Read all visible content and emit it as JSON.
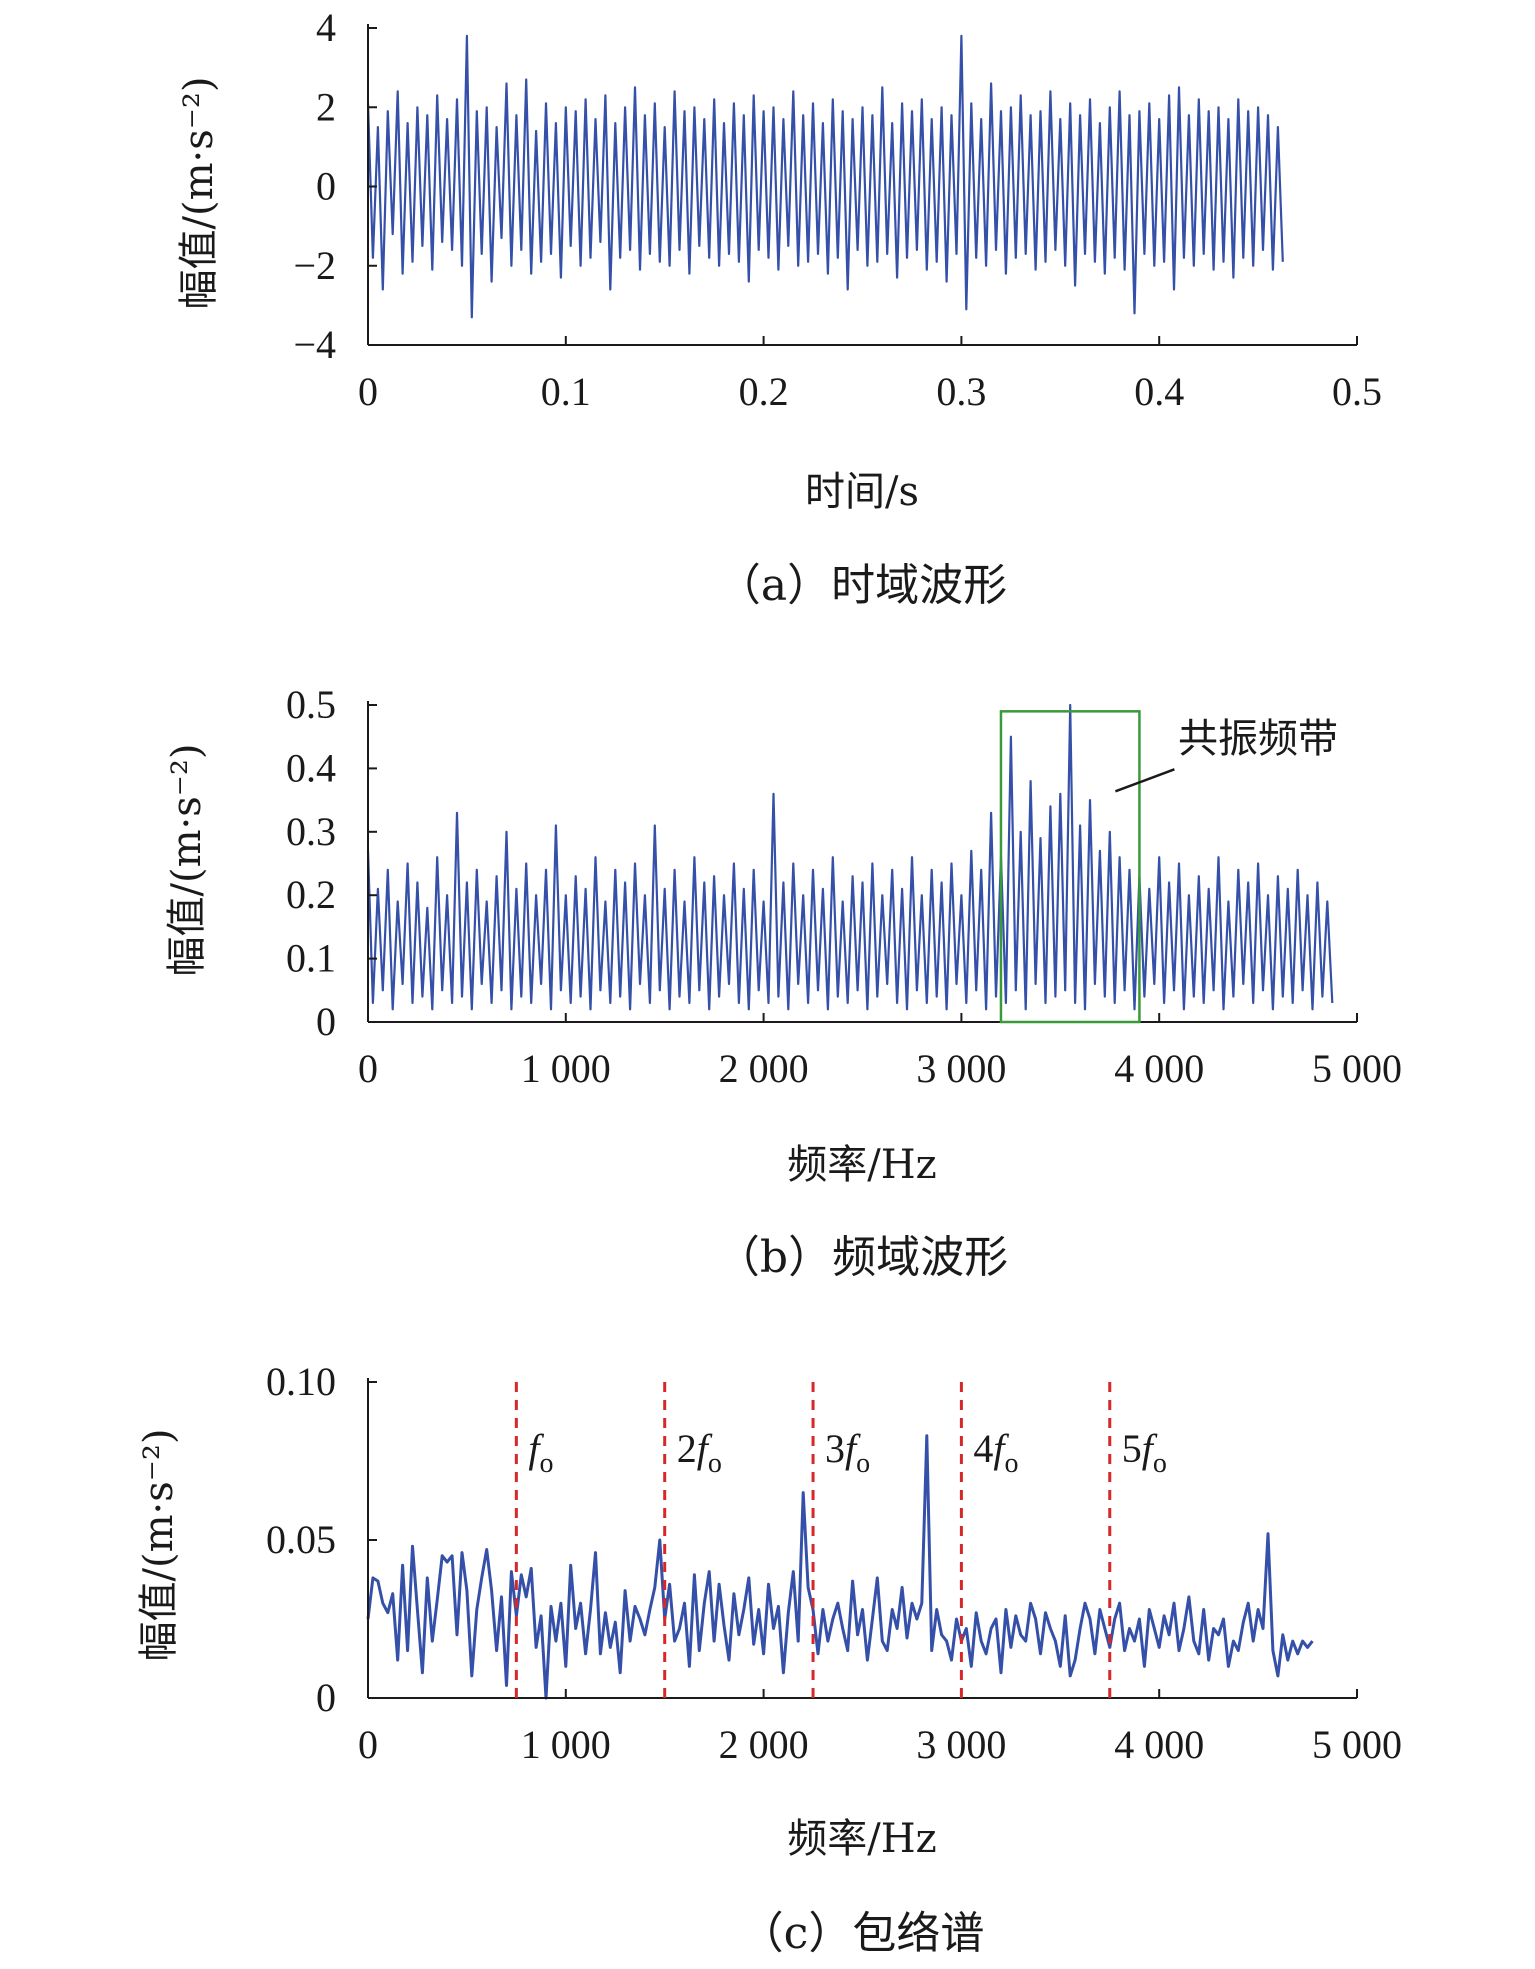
{
  "colors": {
    "series": "#3550a8",
    "axis": "#1a1a1a",
    "band_box": "#3a9a3a",
    "harmonic_line": "#d62828"
  },
  "chart_data": [
    {
      "type": "line",
      "title": "（a）时域波形",
      "xlabel": "时间/s",
      "ylabel": "幅值/(m·s⁻²)",
      "xlim": [
        0,
        0.5
      ],
      "ylim": [
        -4,
        4
      ],
      "x_ticks": [
        0,
        0.1,
        0.2,
        0.3,
        0.4,
        0.5
      ],
      "x_tick_labels": [
        "0",
        "0.1",
        "0.2",
        "0.3",
        "0.4",
        "0.5"
      ],
      "y_ticks": [
        -4,
        -2,
        0,
        2,
        4
      ],
      "y_tick_labels": [
        "−4",
        "−2",
        "0",
        "2",
        "4"
      ],
      "grid": false,
      "series": [
        {
          "x_start": 0,
          "x_step": 0.0025,
          "values": [
            2.1,
            -1.8,
            1.5,
            -2.6,
            1.9,
            -1.2,
            2.4,
            -2.2,
            1.6,
            -1.9,
            2.0,
            -1.5,
            1.8,
            -2.1,
            2.3,
            -1.4,
            1.7,
            -1.6,
            2.2,
            -2.0,
            3.8,
            -3.3,
            1.9,
            -1.7,
            2.0,
            -2.4,
            1.5,
            -1.3,
            2.6,
            -2.0,
            1.8,
            -1.6,
            2.7,
            -2.2,
            1.4,
            -1.9,
            2.1,
            -1.7,
            1.6,
            -2.3,
            2.0,
            -1.5,
            1.9,
            -2.0,
            2.2,
            -1.8,
            1.7,
            -1.4,
            2.3,
            -2.6,
            1.6,
            -1.8,
            2.0,
            -1.6,
            2.5,
            -2.1,
            1.8,
            -1.7,
            2.1,
            -1.9,
            1.5,
            -2.0,
            2.4,
            -1.6,
            1.9,
            -2.2,
            2.0,
            -1.5,
            1.7,
            -1.8,
            2.2,
            -2.0,
            1.6,
            -1.7,
            2.1,
            -1.9,
            1.8,
            -2.4,
            2.3,
            -1.6,
            1.9,
            -1.8,
            2.0,
            -2.1,
            1.7,
            -1.5,
            2.4,
            -2.0,
            1.8,
            -1.9,
            2.1,
            -1.7,
            1.6,
            -2.2,
            2.2,
            -1.8,
            1.9,
            -2.6,
            1.7,
            -1.6,
            2.0,
            -2.0,
            1.8,
            -1.9,
            2.5,
            -1.7,
            1.6,
            -2.3,
            2.1,
            -1.8,
            1.9,
            -1.6,
            2.2,
            -2.1,
            1.7,
            -1.9,
            2.0,
            -2.4,
            1.8,
            -1.7,
            3.8,
            -3.1,
            2.1,
            -1.8,
            1.7,
            -2.0,
            2.6,
            -1.6,
            1.9,
            -2.2,
            2.0,
            -1.8,
            2.3,
            -1.7,
            1.8,
            -2.1,
            1.9,
            -1.9,
            2.4,
            -1.6,
            1.7,
            -2.0,
            2.1,
            -2.5,
            1.8,
            -1.7,
            2.2,
            -1.9,
            1.6,
            -2.2,
            2.0,
            -1.8,
            2.4,
            -2.1,
            1.8,
            -3.2,
            1.9,
            -1.7,
            2.1,
            -2.0,
            1.7,
            -1.9,
            2.3,
            -2.6,
            2.5,
            -1.8,
            1.8,
            -2.0,
            2.2,
            -1.7,
            1.9,
            -2.1,
            2.0,
            -1.9,
            1.7,
            -2.3,
            2.2,
            -1.8,
            1.9,
            -2.0,
            2.0,
            -1.6,
            1.8,
            -2.1,
            1.5,
            -1.9
          ]
        }
      ],
      "caption": "（a）时域波形"
    },
    {
      "type": "line",
      "title": "（b）频域波形",
      "xlabel": "频率/Hz",
      "ylabel": "幅值/(m·s⁻²)",
      "xlim": [
        0,
        5000
      ],
      "ylim": [
        0,
        0.5
      ],
      "x_ticks": [
        0,
        1000,
        2000,
        3000,
        4000,
        5000
      ],
      "x_tick_labels": [
        "0",
        "1 000",
        "2 000",
        "3 000",
        "4 000",
        "5 000"
      ],
      "y_ticks": [
        0,
        0.1,
        0.2,
        0.3,
        0.4,
        0.5
      ],
      "y_tick_labels": [
        "0",
        "0.1",
        "0.2",
        "0.3",
        "0.4",
        "0.5"
      ],
      "grid": false,
      "band": {
        "x": [
          3200,
          3900
        ],
        "y": [
          0,
          0.49
        ],
        "label": "共振频带"
      },
      "series": [
        {
          "x_start": 0,
          "x_step": 25,
          "values": [
            0.27,
            0.03,
            0.21,
            0.05,
            0.24,
            0.02,
            0.19,
            0.06,
            0.25,
            0.03,
            0.22,
            0.04,
            0.18,
            0.02,
            0.26,
            0.05,
            0.2,
            0.03,
            0.33,
            0.04,
            0.22,
            0.02,
            0.24,
            0.06,
            0.19,
            0.03,
            0.23,
            0.05,
            0.3,
            0.02,
            0.21,
            0.04,
            0.25,
            0.03,
            0.2,
            0.06,
            0.24,
            0.02,
            0.31,
            0.05,
            0.2,
            0.03,
            0.23,
            0.04,
            0.21,
            0.02,
            0.26,
            0.05,
            0.19,
            0.03,
            0.24,
            0.04,
            0.22,
            0.02,
            0.25,
            0.06,
            0.2,
            0.03,
            0.31,
            0.05,
            0.21,
            0.02,
            0.24,
            0.04,
            0.19,
            0.03,
            0.26,
            0.05,
            0.22,
            0.02,
            0.23,
            0.04,
            0.2,
            0.06,
            0.25,
            0.03,
            0.21,
            0.02,
            0.24,
            0.05,
            0.19,
            0.03,
            0.36,
            0.04,
            0.22,
            0.02,
            0.25,
            0.06,
            0.2,
            0.03,
            0.24,
            0.05,
            0.21,
            0.02,
            0.26,
            0.04,
            0.19,
            0.03,
            0.23,
            0.05,
            0.22,
            0.02,
            0.25,
            0.04,
            0.2,
            0.06,
            0.24,
            0.03,
            0.21,
            0.02,
            0.26,
            0.05,
            0.2,
            0.03,
            0.24,
            0.04,
            0.22,
            0.02,
            0.25,
            0.06,
            0.2,
            0.03,
            0.27,
            0.05,
            0.24,
            0.02,
            0.33,
            0.04,
            0.26,
            0.03,
            0.45,
            0.05,
            0.3,
            0.02,
            0.38,
            0.06,
            0.29,
            0.03,
            0.34,
            0.04,
            0.36,
            0.05,
            0.5,
            0.03,
            0.31,
            0.02,
            0.35,
            0.06,
            0.27,
            0.04,
            0.3,
            0.03,
            0.26,
            0.05,
            0.24,
            0.02,
            0.23,
            0.04,
            0.21,
            0.06,
            0.26,
            0.03,
            0.22,
            0.05,
            0.25,
            0.02,
            0.2,
            0.04,
            0.23,
            0.03,
            0.21,
            0.05,
            0.26,
            0.02,
            0.19,
            0.04,
            0.24,
            0.06,
            0.22,
            0.03,
            0.25,
            0.05,
            0.2,
            0.02,
            0.23,
            0.04,
            0.21,
            0.03,
            0.24,
            0.05,
            0.2,
            0.02,
            0.22,
            0.04,
            0.19,
            0.03
          ]
        }
      ],
      "caption": "（b）频域波形"
    },
    {
      "type": "line",
      "title": "（c）包络谱",
      "xlabel": "频率/Hz",
      "ylabel": "幅值/(m·s⁻²)",
      "xlim": [
        0,
        5000
      ],
      "ylim": [
        0,
        0.1
      ],
      "x_ticks": [
        0,
        1000,
        2000,
        3000,
        4000,
        5000
      ],
      "x_tick_labels": [
        "0",
        "1 000",
        "2 000",
        "3 000",
        "4 000",
        "5 000"
      ],
      "y_ticks": [
        0,
        0.05,
        0.1
      ],
      "y_tick_labels": [
        "0",
        "0.05",
        "0.10"
      ],
      "grid": false,
      "harmonics": [
        {
          "x": 750,
          "label_pre": "",
          "label_f": "f",
          "label_sub": "o"
        },
        {
          "x": 1500,
          "label_pre": "2",
          "label_f": "f",
          "label_sub": "o"
        },
        {
          "x": 2250,
          "label_pre": "3",
          "label_f": "f",
          "label_sub": "o"
        },
        {
          "x": 3000,
          "label_pre": "4",
          "label_f": "f",
          "label_sub": "o"
        },
        {
          "x": 3750,
          "label_pre": "5",
          "label_f": "f",
          "label_sub": "o"
        }
      ],
      "series": [
        {
          "x_start": 0,
          "x_step": 25,
          "values": [
            0.025,
            0.038,
            0.037,
            0.03,
            0.027,
            0.033,
            0.012,
            0.042,
            0.015,
            0.048,
            0.028,
            0.008,
            0.038,
            0.018,
            0.031,
            0.045,
            0.043,
            0.045,
            0.02,
            0.046,
            0.034,
            0.007,
            0.028,
            0.038,
            0.047,
            0.034,
            0.015,
            0.032,
            0.004,
            0.04,
            0.026,
            0.039,
            0.032,
            0.041,
            0.016,
            0.026,
            0.0,
            0.029,
            0.018,
            0.03,
            0.01,
            0.042,
            0.022,
            0.03,
            0.014,
            0.028,
            0.046,
            0.014,
            0.027,
            0.016,
            0.024,
            0.008,
            0.034,
            0.018,
            0.029,
            0.025,
            0.02,
            0.028,
            0.035,
            0.05,
            0.025,
            0.036,
            0.018,
            0.022,
            0.03,
            0.01,
            0.039,
            0.015,
            0.03,
            0.04,
            0.018,
            0.036,
            0.023,
            0.012,
            0.033,
            0.02,
            0.028,
            0.038,
            0.017,
            0.028,
            0.014,
            0.036,
            0.022,
            0.029,
            0.008,
            0.027,
            0.04,
            0.018,
            0.065,
            0.035,
            0.028,
            0.014,
            0.028,
            0.018,
            0.025,
            0.03,
            0.022,
            0.015,
            0.037,
            0.02,
            0.028,
            0.012,
            0.025,
            0.038,
            0.018,
            0.015,
            0.028,
            0.022,
            0.035,
            0.019,
            0.03,
            0.025,
            0.03,
            0.083,
            0.015,
            0.028,
            0.02,
            0.018,
            0.012,
            0.025,
            0.018,
            0.022,
            0.01,
            0.027,
            0.018,
            0.014,
            0.022,
            0.025,
            0.008,
            0.028,
            0.016,
            0.026,
            0.02,
            0.018,
            0.03,
            0.025,
            0.014,
            0.027,
            0.022,
            0.018,
            0.01,
            0.026,
            0.007,
            0.012,
            0.022,
            0.03,
            0.025,
            0.014,
            0.028,
            0.022,
            0.016,
            0.025,
            0.03,
            0.015,
            0.022,
            0.018,
            0.025,
            0.01,
            0.028,
            0.022,
            0.016,
            0.026,
            0.02,
            0.03,
            0.015,
            0.022,
            0.032,
            0.018,
            0.014,
            0.028,
            0.012,
            0.022,
            0.02,
            0.025,
            0.01,
            0.018,
            0.015,
            0.024,
            0.03,
            0.018,
            0.028,
            0.022,
            0.052,
            0.015,
            0.007,
            0.02,
            0.012,
            0.018,
            0.014,
            0.018,
            0.016,
            0.018
          ]
        }
      ],
      "caption": "（c）包络谱"
    }
  ]
}
